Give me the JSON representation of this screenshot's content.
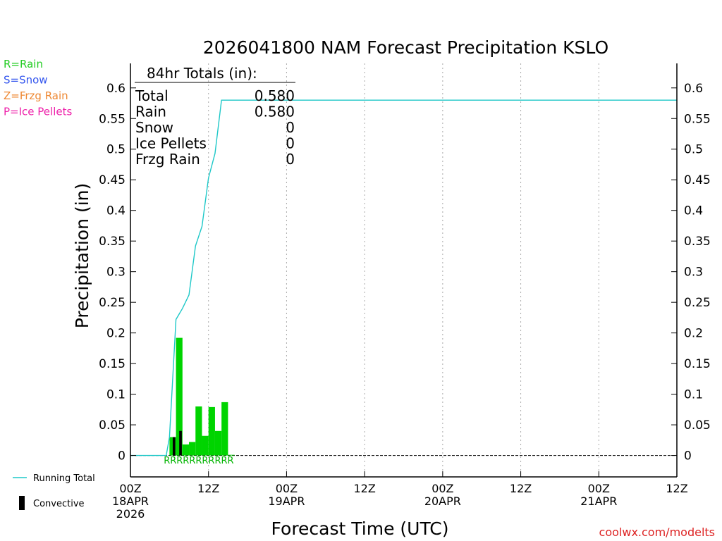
{
  "chart_data": {
    "type": "bar",
    "title": "2026041800 NAM Forecast Precipitation KSLO",
    "xlabel": "Forecast Time (UTC)",
    "ylabel": "Precipitation (in)",
    "xlim_hours": [
      0,
      84
    ],
    "ylim": [
      -0.035,
      0.64
    ],
    "y_ticks": [
      {
        "v": 0,
        "label": "0"
      },
      {
        "v": 0.05,
        "label": "0.05"
      },
      {
        "v": 0.1,
        "label": "0.1"
      },
      {
        "v": 0.15,
        "label": "0.15"
      },
      {
        "v": 0.2,
        "label": "0.2"
      },
      {
        "v": 0.25,
        "label": "0.25"
      },
      {
        "v": 0.3,
        "label": "0.3"
      },
      {
        "v": 0.35,
        "label": "0.35"
      },
      {
        "v": 0.4,
        "label": "0.4"
      },
      {
        "v": 0.45,
        "label": "0.45"
      },
      {
        "v": 0.5,
        "label": "0.5"
      },
      {
        "v": 0.55,
        "label": "0.55"
      },
      {
        "v": 0.6,
        "label": "0.6"
      }
    ],
    "x_ticks": [
      {
        "h": 0,
        "lines": [
          "00Z",
          "18APR",
          "2026"
        ]
      },
      {
        "h": 12,
        "lines": [
          "12Z"
        ]
      },
      {
        "h": 24,
        "lines": [
          "00Z",
          "19APR"
        ]
      },
      {
        "h": 36,
        "lines": [
          "12Z"
        ]
      },
      {
        "h": 48,
        "lines": [
          "00Z",
          "20APR"
        ]
      },
      {
        "h": 60,
        "lines": [
          "12Z"
        ]
      },
      {
        "h": 72,
        "lines": [
          "00Z",
          "21APR"
        ]
      },
      {
        "h": 84,
        "lines": [
          "12Z"
        ]
      }
    ],
    "gridlines_hours": [
      12,
      24,
      36,
      48,
      60,
      72
    ],
    "series": [
      {
        "name": "Rain",
        "color": "#00d400",
        "bar_width_hours": 1,
        "x": [
          6,
          7,
          8,
          9,
          10,
          11,
          12,
          13,
          14,
          15
        ],
        "values": [
          0.03,
          0.192,
          0.018,
          0.022,
          0.08,
          0.032,
          0.079,
          0.04,
          0.087,
          0.001
        ]
      },
      {
        "name": "Convective",
        "color": "#000000",
        "bar_width_hours": 0.4,
        "x": [
          6.5,
          7.5
        ],
        "values": [
          0.03,
          0.04
        ]
      },
      {
        "name": "Running Total",
        "color": "#1ec8c8",
        "type": "line",
        "x": [
          0,
          5.5,
          6,
          7,
          8,
          9,
          10,
          11,
          12,
          13,
          14,
          14.5,
          16,
          84
        ],
        "values": [
          0,
          0,
          0.03,
          0.222,
          0.24,
          0.262,
          0.342,
          0.374,
          0.453,
          0.493,
          0.58,
          0.58,
          0.58,
          0.58
        ]
      }
    ],
    "precip_type_markers": {
      "text": "RRRRRRRRRRR",
      "color": "#00b400",
      "start_hour": 5,
      "end_hour": 16
    },
    "totals_box": {
      "heading": "84hr Totals (in):",
      "rows": [
        {
          "label": "Total",
          "value": "0.580"
        },
        {
          "label": "Rain",
          "value": "0.580"
        },
        {
          "label": "Snow",
          "value": "0"
        },
        {
          "label": "Ice Pellets",
          "value": "0"
        },
        {
          "label": "Frzg Rain",
          "value": "0"
        }
      ]
    },
    "type_legend": [
      {
        "text": "R=Rain",
        "color": "#22cc22"
      },
      {
        "text": "S=Snow",
        "color": "#3355ee"
      },
      {
        "text": "Z=Frzg Rain",
        "color": "#ee8833"
      },
      {
        "text": "P=Ice Pellets",
        "color": "#ee22aa"
      }
    ],
    "bottom_legend": [
      {
        "text": "Running Total",
        "color": "#1ec8c8",
        "kind": "line"
      },
      {
        "text": "Convective",
        "color": "#000000",
        "kind": "bar"
      }
    ]
  },
  "credit": "coolwx.com/modelts"
}
